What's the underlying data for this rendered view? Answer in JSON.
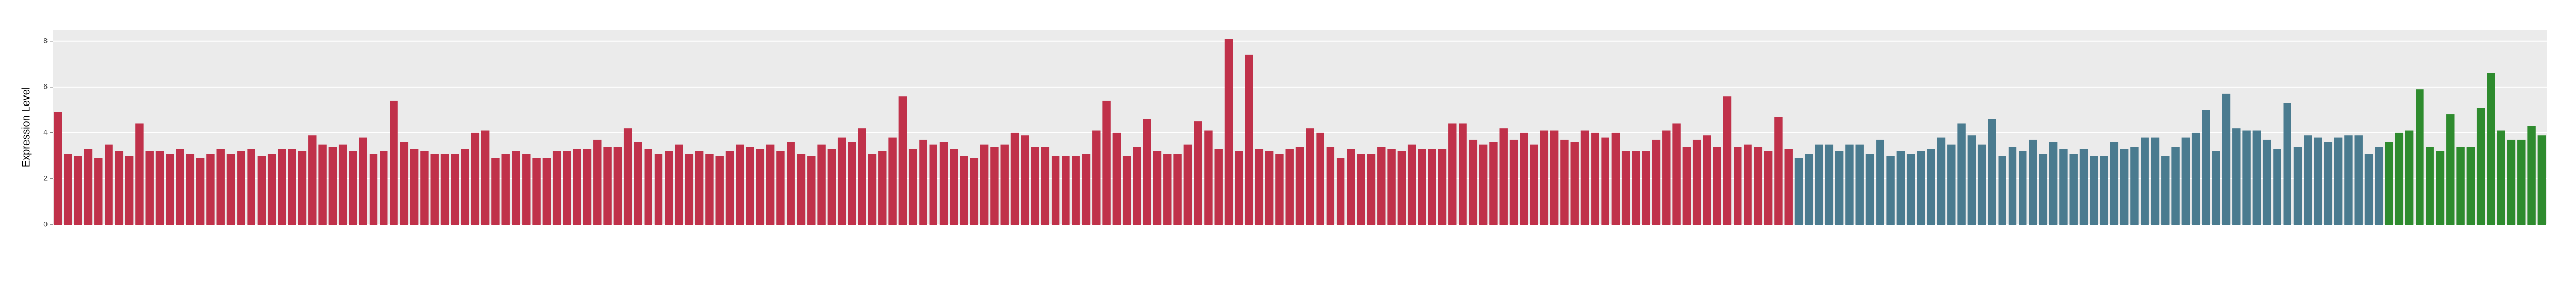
{
  "chart_data": {
    "type": "bar",
    "y_label": "Expression Level",
    "ylim": [
      0,
      8.5
    ],
    "yticks": [
      0,
      2,
      4,
      6,
      8
    ],
    "grid": true,
    "background": "#ebebeb",
    "series": [
      {
        "color": "#c0314a",
        "values": [
          4.9,
          3.1,
          3.0,
          3.3,
          2.9,
          3.5,
          3.2,
          3.0,
          4.4,
          3.2,
          3.2,
          3.1,
          3.3,
          3.1,
          2.9,
          3.1,
          3.3,
          3.1,
          3.2,
          3.3,
          3.0,
          3.1,
          3.3,
          3.3,
          3.2,
          3.9,
          3.5,
          3.4,
          3.5,
          3.2,
          3.8,
          3.1,
          3.2,
          5.4,
          3.6,
          3.3,
          3.2,
          3.1,
          3.1,
          3.1,
          3.3,
          4.0,
          4.1,
          2.9,
          3.1,
          3.2,
          3.1,
          2.9,
          2.9,
          3.2,
          3.2,
          3.3,
          3.3,
          3.7,
          3.4,
          3.4,
          4.2,
          3.6,
          3.3,
          3.1,
          3.2,
          3.5,
          3.1,
          3.2,
          3.1,
          3.0,
          3.2,
          3.5,
          3.4,
          3.3,
          3.5,
          3.2,
          3.6,
          3.1,
          3.0,
          3.5,
          3.3,
          3.8,
          3.6,
          4.2,
          3.1,
          3.2,
          3.8,
          5.6,
          3.3,
          3.7,
          3.5,
          3.6,
          3.3,
          3.0,
          2.9,
          3.5,
          3.4,
          3.5,
          4.0,
          3.9,
          3.4,
          3.4,
          3.0,
          3.0,
          3.0,
          3.1,
          4.1,
          5.4,
          4.0,
          3.0,
          3.4,
          4.6,
          3.2,
          3.1,
          3.1,
          3.5,
          4.5,
          4.1,
          3.3,
          8.1,
          3.2,
          7.4,
          3.3,
          3.2,
          3.1,
          3.3,
          3.4,
          4.2,
          4.0,
          3.4,
          2.9,
          3.3,
          3.1,
          3.1,
          3.4,
          3.3,
          3.2,
          3.5,
          3.3,
          3.3,
          3.3,
          4.4,
          4.4,
          3.7,
          3.5,
          3.6,
          4.2,
          3.7,
          4.0,
          3.5,
          4.1,
          4.1,
          3.7,
          3.6,
          4.1,
          4.0,
          3.8,
          4.0,
          3.2,
          3.2,
          3.2,
          3.7,
          4.1,
          4.4,
          3.4,
          3.7,
          3.9,
          3.4,
          5.6,
          3.4,
          3.5,
          3.4,
          3.2,
          4.7,
          3.3
        ]
      },
      {
        "color": "#4a7b8f",
        "values": [
          2.9,
          3.1,
          3.5,
          3.5,
          3.2,
          3.5,
          3.5,
          3.1,
          3.7,
          3.0,
          3.2,
          3.1,
          3.2,
          3.3,
          3.8,
          3.5,
          4.4,
          3.9,
          3.5,
          4.6,
          3.0,
          3.4,
          3.2,
          3.7,
          3.1,
          3.6,
          3.3,
          3.1,
          3.3,
          3.0,
          3.0,
          3.6,
          3.3,
          3.4,
          3.8,
          3.8,
          3.0,
          3.4,
          3.8,
          4.0,
          5.0,
          3.2,
          5.7,
          4.2,
          4.1,
          4.1,
          3.7,
          3.3,
          5.3,
          3.4,
          3.9,
          3.8,
          3.6,
          3.8,
          3.9,
          3.9,
          3.1,
          3.4
        ]
      },
      {
        "color": "#2e8b2e",
        "values": [
          3.6,
          4.0,
          4.1,
          5.9,
          3.4,
          3.2,
          4.8,
          3.4,
          3.4,
          5.1,
          6.6,
          4.1,
          3.7,
          3.7,
          4.3,
          3.9
        ]
      }
    ]
  }
}
